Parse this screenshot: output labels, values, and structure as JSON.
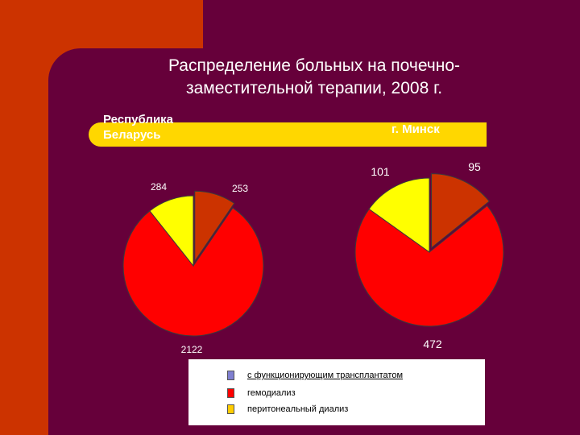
{
  "title": "Распределение больных на почечно-\nзаместительной терапии, 2008 г.",
  "panels": {
    "belarus": "Республика\nБеларусь",
    "minsk": "г. Минск"
  },
  "colors": {
    "background": "#66003a",
    "accent": "#cc3300",
    "band": "#ffd700",
    "transplant": "#cc3300",
    "hemodialysis": "#ff0000",
    "peritoneal": "#ffff00"
  },
  "legend": {
    "items": [
      {
        "label": "с функционирующим трансплантатом",
        "color": "#7f7fd0"
      },
      {
        "label": "гемодиализ",
        "color": "#ff0000"
      },
      {
        "label": "перитонеальный диализ",
        "color": "#ffcc00"
      }
    ]
  },
  "chart_data": [
    {
      "type": "pie",
      "title": "Республика Беларусь",
      "slices": [
        {
          "label": "253",
          "value": 253,
          "color": "#cc3300"
        },
        {
          "label": "2122",
          "value": 2122,
          "color": "#ff0000"
        },
        {
          "label": "284",
          "value": 284,
          "color": "#ffff00"
        }
      ]
    },
    {
      "type": "pie",
      "title": "г. Минск",
      "slices": [
        {
          "label": "95",
          "value": 95,
          "color": "#cc3300"
        },
        {
          "label": "472",
          "value": 472,
          "color": "#ff0000"
        },
        {
          "label": "101",
          "value": 101,
          "color": "#ffff00"
        }
      ]
    }
  ]
}
